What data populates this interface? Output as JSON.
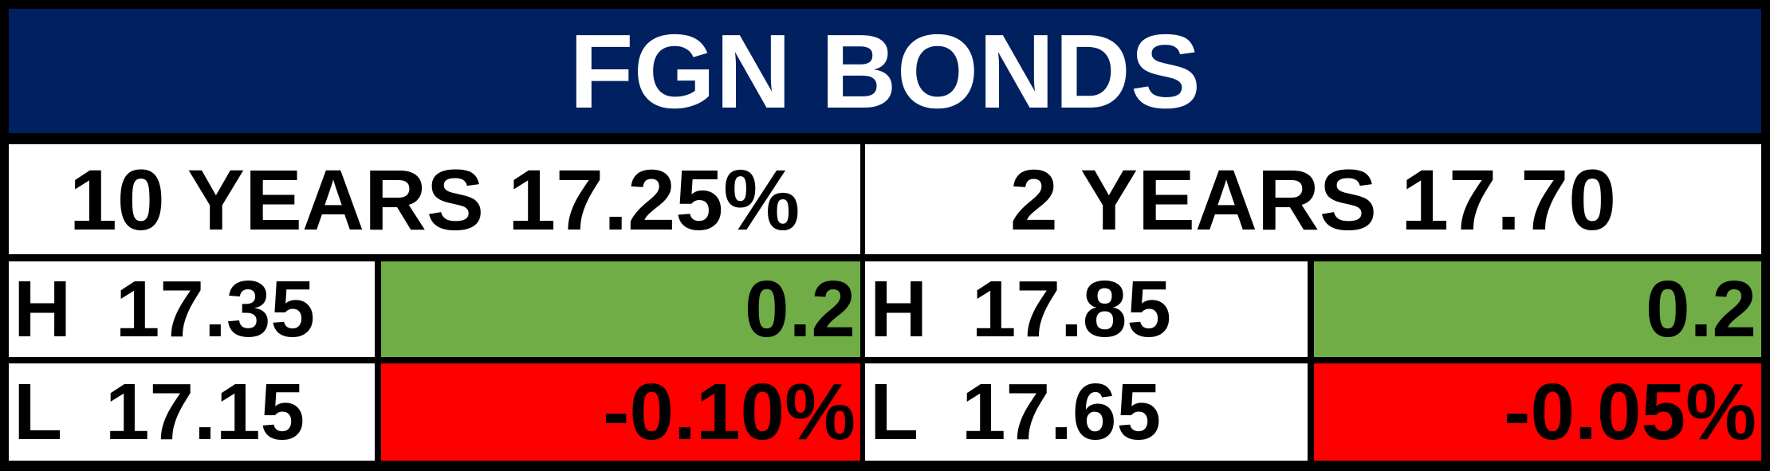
{
  "title": "FGN BONDS",
  "columns": [
    {
      "heading": "10 YEARS 17.25%",
      "high": "H  17.35",
      "high_change": "0.2",
      "low": "L  17.15",
      "low_change": "-0.10%"
    },
    {
      "heading": "2 YEARS 17.70",
      "high": "H  17.85",
      "high_change": "0.2",
      "low": "L  17.65",
      "low_change": "-0.05%"
    }
  ]
}
